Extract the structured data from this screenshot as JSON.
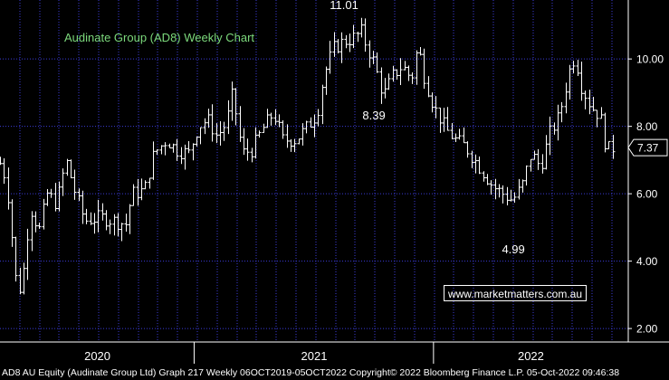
{
  "chart_data": {
    "type": "bar",
    "subtype": "ohlc",
    "title": "Audinate Group (AD8) Weekly Chart",
    "ticker": "AD8 AU Equity",
    "company": "Audinate Group Ltd",
    "frequency": "Weekly",
    "date_range": "06OCT2019-05OCT2022",
    "y_axis_side": "right",
    "yticks": [
      "2.00",
      "4.00",
      "6.00",
      "8.00",
      "10.00"
    ],
    "ylim": [
      1.6,
      11.75
    ],
    "x_labels": [
      "2020",
      "2021",
      "2022"
    ],
    "last_price": "7.37",
    "grid": true,
    "colors": {
      "background": "#000000",
      "grid": "#3b3bd6",
      "bars": "#ffffff",
      "title": "#7cd97c",
      "axis_text": "#ffffff"
    },
    "annotations": [
      {
        "text": "11.01",
        "x": 0.548,
        "y": 11.01
      },
      {
        "text": "8.39",
        "x": 0.6,
        "y": 8.39
      },
      {
        "text": "4.99",
        "x": 0.822,
        "y": 4.99
      }
    ],
    "close_path": [
      [
        0.0,
        6.9
      ],
      [
        0.01,
        6.4
      ],
      [
        0.02,
        4.5
      ],
      [
        0.028,
        2.9
      ],
      [
        0.038,
        3.8
      ],
      [
        0.048,
        5.6
      ],
      [
        0.062,
        4.9
      ],
      [
        0.075,
        6.0
      ],
      [
        0.09,
        5.7
      ],
      [
        0.105,
        7.0
      ],
      [
        0.12,
        6.0
      ],
      [
        0.135,
        5.2
      ],
      [
        0.16,
        5.3
      ],
      [
        0.18,
        5.2
      ],
      [
        0.2,
        5.1
      ],
      [
        0.21,
        6.0
      ],
      [
        0.23,
        6.1
      ],
      [
        0.245,
        7.2
      ],
      [
        0.265,
        7.6
      ],
      [
        0.28,
        7.3
      ],
      [
        0.3,
        7.2
      ],
      [
        0.315,
        8.0
      ],
      [
        0.33,
        8.2
      ],
      [
        0.345,
        7.7
      ],
      [
        0.36,
        8.1
      ],
      [
        0.37,
        9.0
      ],
      [
        0.385,
        7.2
      ],
      [
        0.4,
        7.3
      ],
      [
        0.42,
        8.0
      ],
      [
        0.435,
        8.4
      ],
      [
        0.45,
        7.6
      ],
      [
        0.47,
        7.6
      ],
      [
        0.49,
        8.0
      ],
      [
        0.505,
        8.4
      ],
      [
        0.515,
        9.5
      ],
      [
        0.53,
        10.3
      ],
      [
        0.545,
        10.5
      ],
      [
        0.56,
        10.6
      ],
      [
        0.575,
        10.8
      ],
      [
        0.585,
        10.3
      ],
      [
        0.595,
        9.9
      ],
      [
        0.61,
        8.9
      ],
      [
        0.625,
        9.5
      ],
      [
        0.64,
        9.8
      ],
      [
        0.655,
        9.4
      ],
      [
        0.665,
        10.4
      ],
      [
        0.675,
        9.5
      ],
      [
        0.69,
        8.6
      ],
      [
        0.71,
        7.9
      ],
      [
        0.725,
        7.6
      ],
      [
        0.74,
        7.4
      ],
      [
        0.755,
        7.0
      ],
      [
        0.77,
        6.6
      ],
      [
        0.785,
        6.2
      ],
      [
        0.8,
        6.0
      ],
      [
        0.815,
        5.8
      ],
      [
        0.83,
        6.2
      ],
      [
        0.845,
        7.2
      ],
      [
        0.86,
        6.8
      ],
      [
        0.875,
        7.8
      ],
      [
        0.89,
        8.3
      ],
      [
        0.905,
        9.6
      ],
      [
        0.915,
        10.1
      ],
      [
        0.925,
        9.2
      ],
      [
        0.94,
        8.6
      ],
      [
        0.955,
        8.3
      ],
      [
        0.965,
        7.3
      ],
      [
        0.975,
        7.37
      ]
    ]
  },
  "watermark": "www.marketmatters.com.au",
  "footer": "AD8 AU Equity (Audinate Group Ltd) Graph 217  Weekly 06OCT2019-05OCT2022  Copyright© 2022 Bloomberg Finance L.P.  05-Oct-2022 09:46:38"
}
